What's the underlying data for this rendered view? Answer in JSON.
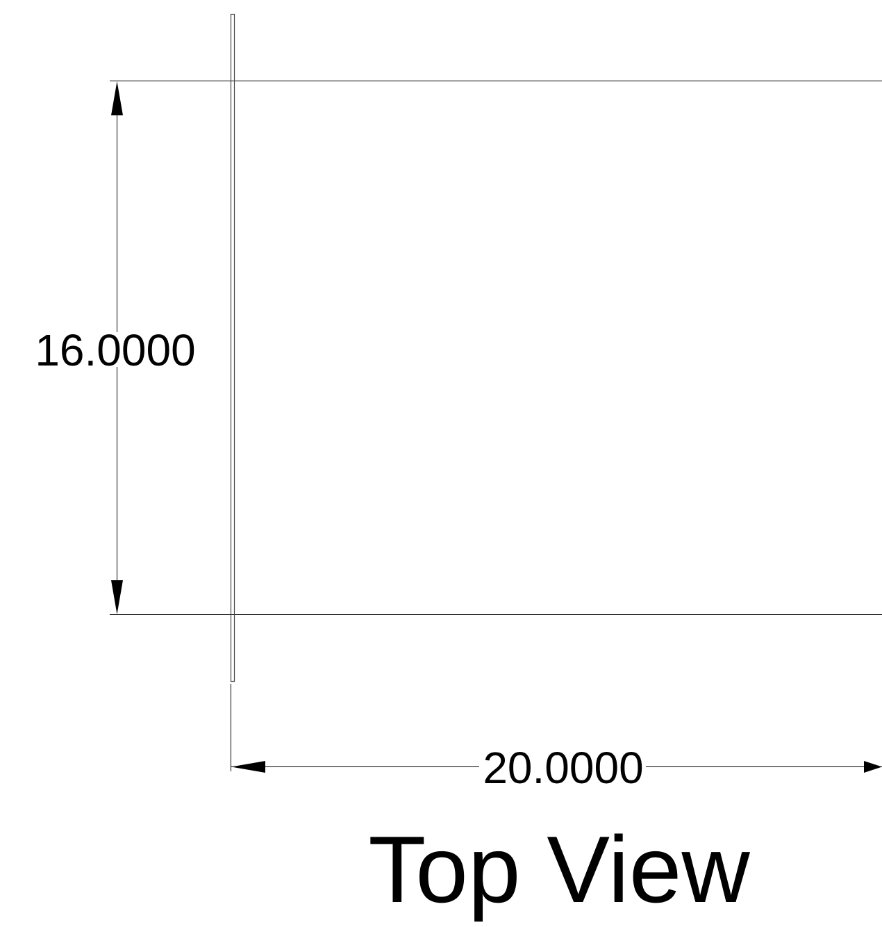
{
  "drawing": {
    "view_title": "Top View",
    "dimensions": {
      "height": {
        "value": 16.0,
        "label": "16.0000"
      },
      "width": {
        "value": 20.0,
        "label": "20.0000"
      }
    },
    "colors": {
      "background": "#ffffff",
      "line": "#000000"
    }
  }
}
